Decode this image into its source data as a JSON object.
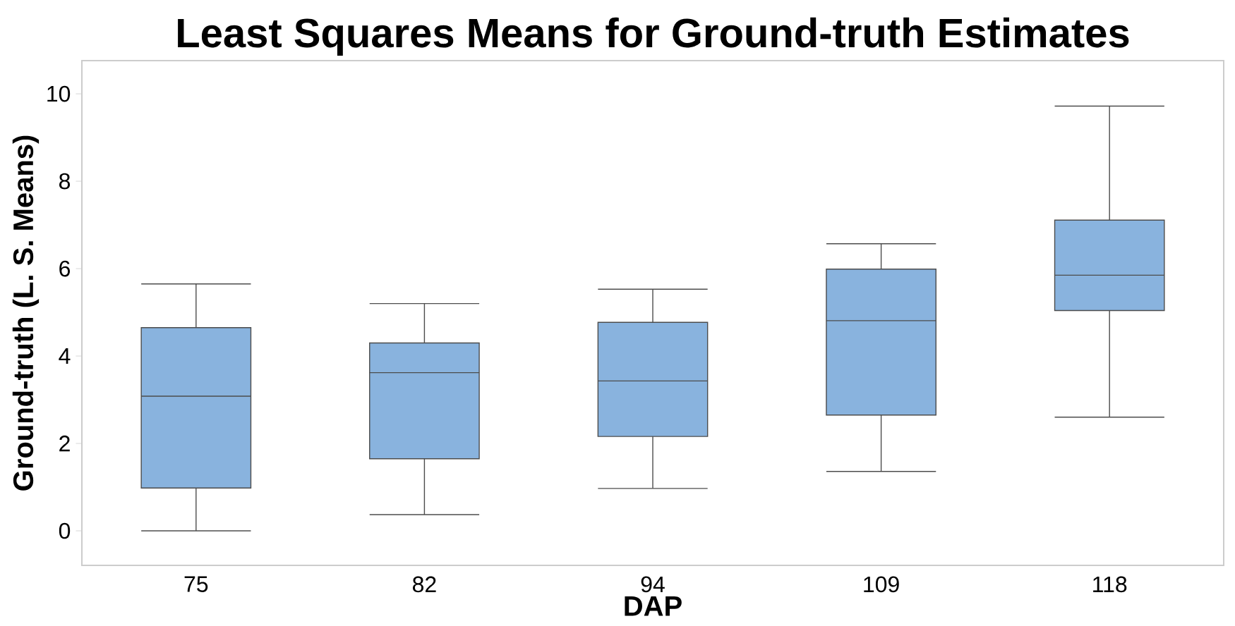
{
  "chart_data": {
    "type": "box",
    "title": "Least Squares Means for Ground-truth Estimates",
    "xlabel": "DAP",
    "ylabel": "Ground-truth (L. S. Means)",
    "categories": [
      "75",
      "82",
      "94",
      "109",
      "118"
    ],
    "color": "#89b3de",
    "boxes": [
      {
        "low": 0.0,
        "q1": 0.98,
        "median": 3.08,
        "q3": 4.65,
        "high": 5.65
      },
      {
        "low": 0.37,
        "q1": 1.65,
        "median": 3.62,
        "q3": 4.3,
        "high": 5.2
      },
      {
        "low": 0.97,
        "q1": 2.16,
        "median": 3.43,
        "q3": 4.77,
        "high": 5.53
      },
      {
        "low": 1.36,
        "q1": 2.65,
        "median": 4.81,
        "q3": 5.99,
        "high": 6.57
      },
      {
        "low": 2.6,
        "q1": 5.04,
        "median": 5.85,
        "q3": 7.11,
        "high": 9.72
      }
    ],
    "ylim": [
      -0.79,
      10.76
    ],
    "yticks": [
      0,
      2,
      4,
      6,
      8,
      10
    ],
    "grid": false
  }
}
